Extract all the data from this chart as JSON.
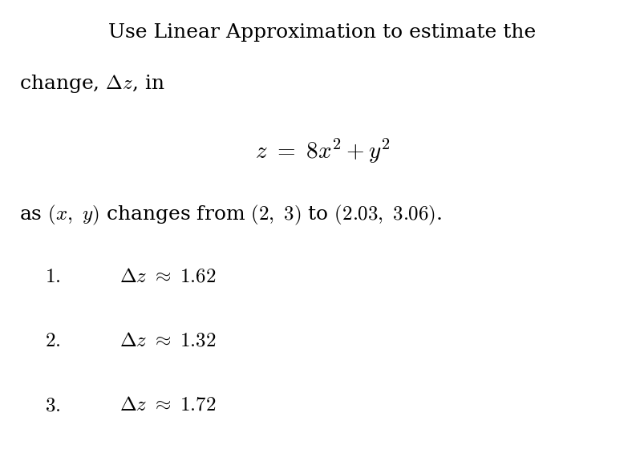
{
  "background_color": "#ffffff",
  "text_color": "#000000",
  "fig_width": 8.04,
  "fig_height": 5.7,
  "dpi": 100,
  "line1": "Use Linear Approximation to estimate the",
  "line2": "change, $\\Delta z$, in",
  "equation": "$z\\ =\\ 8x^2 + y^2$",
  "condition": "as $(x,\\ y)$ changes from $(2,\\ 3)$ to $(2.03,\\ 3.06)$.",
  "options": [
    {
      "num": "1.",
      "expr": "$\\Delta z\\ \\approx\\ 1.62$"
    },
    {
      "num": "2.",
      "expr": "$\\Delta z\\ \\approx\\ 1.32$"
    },
    {
      "num": "3.",
      "expr": "$\\Delta z\\ \\approx\\ 1.72$"
    }
  ],
  "fontsize_body": 18,
  "fontsize_eq": 21,
  "fontsize_opt": 18
}
